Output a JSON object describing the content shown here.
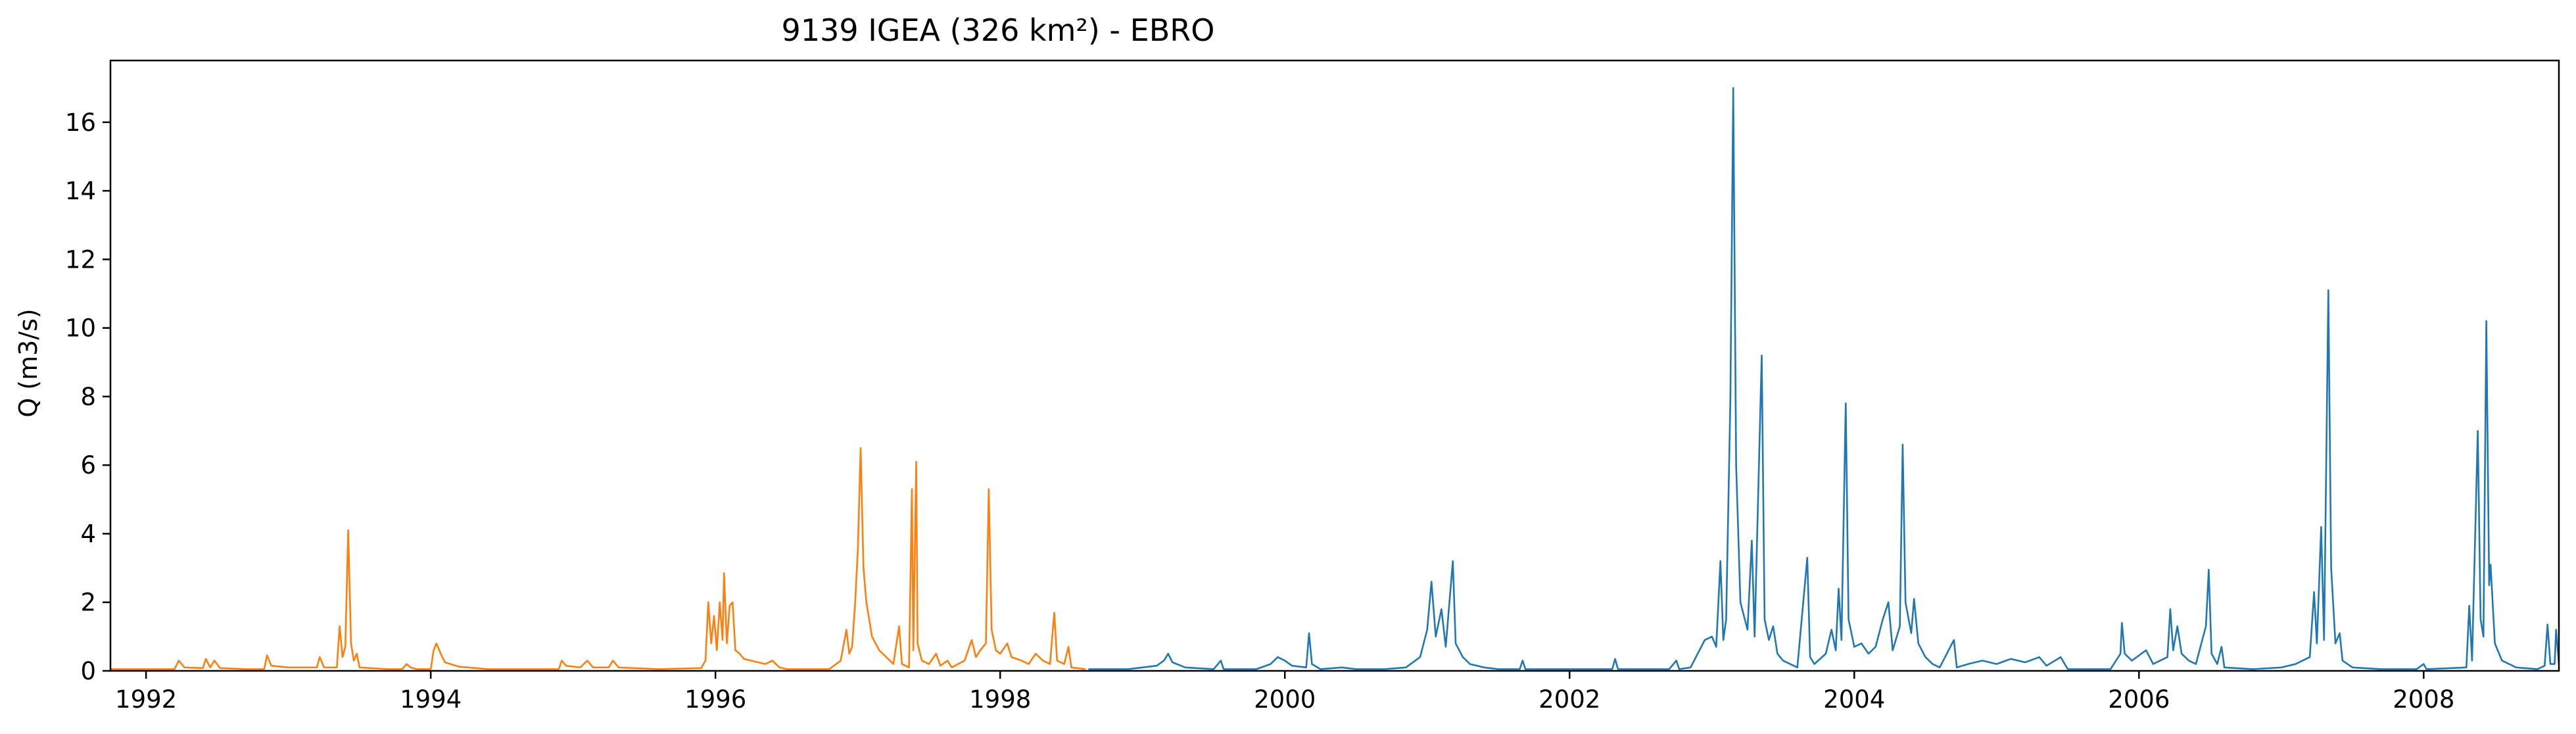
{
  "chart_data": {
    "type": "line",
    "title": "9139 IGEA (326 km²) - EBRO",
    "xlabel": "",
    "ylabel": "Q (m3/s)",
    "x_unit": "year",
    "xlim": [
      1991.75,
      2008.95
    ],
    "ylim": [
      0,
      17.8
    ],
    "xticks": [
      "1992",
      "1994",
      "1996",
      "1998",
      "2000",
      "2002",
      "2004",
      "2006",
      "2008"
    ],
    "yticks": [
      "0",
      "2",
      "4",
      "6",
      "8",
      "10",
      "12",
      "14",
      "16"
    ],
    "grid": false,
    "legend": "none",
    "series": [
      {
        "color": "#ff7f0e",
        "points": [
          [
            1991.75,
            0.05
          ],
          [
            1992.0,
            0.05
          ],
          [
            1992.2,
            0.05
          ],
          [
            1992.23,
            0.3
          ],
          [
            1992.27,
            0.1
          ],
          [
            1992.4,
            0.08
          ],
          [
            1992.42,
            0.35
          ],
          [
            1992.45,
            0.1
          ],
          [
            1992.48,
            0.3
          ],
          [
            1992.52,
            0.08
          ],
          [
            1992.7,
            0.05
          ],
          [
            1992.83,
            0.05
          ],
          [
            1992.85,
            0.45
          ],
          [
            1992.88,
            0.15
          ],
          [
            1993.0,
            0.1
          ],
          [
            1993.2,
            0.1
          ],
          [
            1993.22,
            0.4
          ],
          [
            1993.25,
            0.1
          ],
          [
            1993.34,
            0.1
          ],
          [
            1993.36,
            1.3
          ],
          [
            1993.38,
            0.4
          ],
          [
            1993.4,
            0.7
          ],
          [
            1993.42,
            4.1
          ],
          [
            1993.44,
            0.8
          ],
          [
            1993.46,
            0.3
          ],
          [
            1993.48,
            0.5
          ],
          [
            1993.5,
            0.1
          ],
          [
            1993.7,
            0.05
          ],
          [
            1993.8,
            0.05
          ],
          [
            1993.83,
            0.2
          ],
          [
            1993.86,
            0.1
          ],
          [
            1993.9,
            0.05
          ],
          [
            1994.0,
            0.05
          ],
          [
            1994.02,
            0.6
          ],
          [
            1994.04,
            0.8
          ],
          [
            1994.07,
            0.5
          ],
          [
            1994.1,
            0.25
          ],
          [
            1994.2,
            0.12
          ],
          [
            1994.4,
            0.05
          ],
          [
            1994.7,
            0.05
          ],
          [
            1994.9,
            0.05
          ],
          [
            1994.92,
            0.3
          ],
          [
            1994.95,
            0.15
          ],
          [
            1995.05,
            0.1
          ],
          [
            1995.1,
            0.3
          ],
          [
            1995.14,
            0.1
          ],
          [
            1995.25,
            0.1
          ],
          [
            1995.28,
            0.3
          ],
          [
            1995.32,
            0.1
          ],
          [
            1995.6,
            0.05
          ],
          [
            1995.9,
            0.08
          ],
          [
            1995.93,
            0.3
          ],
          [
            1995.95,
            2.0
          ],
          [
            1995.97,
            0.8
          ],
          [
            1995.99,
            1.6
          ],
          [
            1996.01,
            0.6
          ],
          [
            1996.03,
            2.0
          ],
          [
            1996.05,
            0.9
          ],
          [
            1996.06,
            2.85
          ],
          [
            1996.08,
            0.8
          ],
          [
            1996.1,
            1.9
          ],
          [
            1996.12,
            2.0
          ],
          [
            1996.14,
            0.6
          ],
          [
            1996.17,
            0.5
          ],
          [
            1996.2,
            0.35
          ],
          [
            1996.25,
            0.3
          ],
          [
            1996.3,
            0.25
          ],
          [
            1996.35,
            0.2
          ],
          [
            1996.4,
            0.3
          ],
          [
            1996.45,
            0.1
          ],
          [
            1996.5,
            0.05
          ],
          [
            1996.8,
            0.05
          ],
          [
            1996.88,
            0.3
          ],
          [
            1996.92,
            1.2
          ],
          [
            1996.94,
            0.5
          ],
          [
            1996.96,
            0.7
          ],
          [
            1996.98,
            1.9
          ],
          [
            1997.0,
            3.5
          ],
          [
            1997.02,
            6.5
          ],
          [
            1997.04,
            3.0
          ],
          [
            1997.06,
            2.0
          ],
          [
            1997.1,
            1.0
          ],
          [
            1997.15,
            0.6
          ],
          [
            1997.2,
            0.4
          ],
          [
            1997.25,
            0.2
          ],
          [
            1997.29,
            1.3
          ],
          [
            1997.31,
            0.2
          ],
          [
            1997.36,
            0.1
          ],
          [
            1997.38,
            5.3
          ],
          [
            1997.39,
            0.6
          ],
          [
            1997.41,
            6.1
          ],
          [
            1997.42,
            0.8
          ],
          [
            1997.45,
            0.3
          ],
          [
            1997.5,
            0.2
          ],
          [
            1997.55,
            0.5
          ],
          [
            1997.58,
            0.15
          ],
          [
            1997.63,
            0.3
          ],
          [
            1997.66,
            0.1
          ],
          [
            1997.75,
            0.3
          ],
          [
            1997.8,
            0.9
          ],
          [
            1997.83,
            0.4
          ],
          [
            1997.86,
            0.6
          ],
          [
            1997.9,
            0.8
          ],
          [
            1997.92,
            5.3
          ],
          [
            1997.94,
            1.2
          ],
          [
            1997.97,
            0.6
          ],
          [
            1998.0,
            0.5
          ],
          [
            1998.05,
            0.8
          ],
          [
            1998.08,
            0.4
          ],
          [
            1998.15,
            0.3
          ],
          [
            1998.2,
            0.2
          ],
          [
            1998.25,
            0.5
          ],
          [
            1998.3,
            0.3
          ],
          [
            1998.35,
            0.2
          ],
          [
            1998.38,
            1.7
          ],
          [
            1998.4,
            0.3
          ],
          [
            1998.45,
            0.2
          ],
          [
            1998.48,
            0.7
          ],
          [
            1998.5,
            0.1
          ],
          [
            1998.6,
            0.05
          ]
        ]
      },
      {
        "color": "#1f77b4",
        "points": [
          [
            1998.62,
            0.05
          ],
          [
            1998.9,
            0.05
          ],
          [
            1999.0,
            0.1
          ],
          [
            1999.1,
            0.15
          ],
          [
            1999.15,
            0.3
          ],
          [
            1999.18,
            0.5
          ],
          [
            1999.21,
            0.25
          ],
          [
            1999.3,
            0.1
          ],
          [
            1999.5,
            0.05
          ],
          [
            1999.55,
            0.3
          ],
          [
            1999.57,
            0.05
          ],
          [
            1999.8,
            0.05
          ],
          [
            1999.9,
            0.2
          ],
          [
            1999.95,
            0.4
          ],
          [
            2000.0,
            0.3
          ],
          [
            2000.05,
            0.15
          ],
          [
            2000.15,
            0.1
          ],
          [
            2000.17,
            1.1
          ],
          [
            2000.19,
            0.2
          ],
          [
            2000.25,
            0.05
          ],
          [
            2000.4,
            0.1
          ],
          [
            2000.5,
            0.05
          ],
          [
            2000.7,
            0.05
          ],
          [
            2000.85,
            0.1
          ],
          [
            2000.95,
            0.4
          ],
          [
            2001.0,
            1.2
          ],
          [
            2001.03,
            2.6
          ],
          [
            2001.06,
            1.0
          ],
          [
            2001.1,
            1.8
          ],
          [
            2001.13,
            0.7
          ],
          [
            2001.18,
            3.2
          ],
          [
            2001.2,
            0.8
          ],
          [
            2001.25,
            0.4
          ],
          [
            2001.3,
            0.2
          ],
          [
            2001.4,
            0.1
          ],
          [
            2001.5,
            0.05
          ],
          [
            2001.65,
            0.05
          ],
          [
            2001.67,
            0.3
          ],
          [
            2001.69,
            0.05
          ],
          [
            2002.0,
            0.05
          ],
          [
            2002.3,
            0.05
          ],
          [
            2002.32,
            0.35
          ],
          [
            2002.34,
            0.05
          ],
          [
            2002.7,
            0.05
          ],
          [
            2002.75,
            0.3
          ],
          [
            2002.77,
            0.05
          ],
          [
            2002.85,
            0.1
          ],
          [
            2002.9,
            0.5
          ],
          [
            2002.95,
            0.9
          ],
          [
            2003.0,
            1.0
          ],
          [
            2003.03,
            0.7
          ],
          [
            2003.06,
            3.2
          ],
          [
            2003.08,
            0.9
          ],
          [
            2003.1,
            1.5
          ],
          [
            2003.13,
            8.0
          ],
          [
            2003.15,
            17.0
          ],
          [
            2003.17,
            6.0
          ],
          [
            2003.2,
            2.0
          ],
          [
            2003.25,
            1.2
          ],
          [
            2003.28,
            3.8
          ],
          [
            2003.3,
            1.0
          ],
          [
            2003.35,
            9.2
          ],
          [
            2003.37,
            1.5
          ],
          [
            2003.4,
            0.9
          ],
          [
            2003.43,
            1.3
          ],
          [
            2003.46,
            0.5
          ],
          [
            2003.5,
            0.3
          ],
          [
            2003.6,
            0.1
          ],
          [
            2003.67,
            3.3
          ],
          [
            2003.69,
            0.4
          ],
          [
            2003.72,
            0.2
          ],
          [
            2003.8,
            0.5
          ],
          [
            2003.84,
            1.2
          ],
          [
            2003.87,
            0.6
          ],
          [
            2003.89,
            2.4
          ],
          [
            2003.91,
            0.9
          ],
          [
            2003.94,
            7.8
          ],
          [
            2003.96,
            1.5
          ],
          [
            2004.0,
            0.7
          ],
          [
            2004.05,
            0.8
          ],
          [
            2004.1,
            0.5
          ],
          [
            2004.15,
            0.7
          ],
          [
            2004.2,
            1.5
          ],
          [
            2004.24,
            2.0
          ],
          [
            2004.27,
            0.6
          ],
          [
            2004.32,
            1.3
          ],
          [
            2004.34,
            6.6
          ],
          [
            2004.36,
            2.0
          ],
          [
            2004.4,
            1.1
          ],
          [
            2004.42,
            2.1
          ],
          [
            2004.45,
            0.8
          ],
          [
            2004.5,
            0.4
          ],
          [
            2004.55,
            0.2
          ],
          [
            2004.6,
            0.1
          ],
          [
            2004.7,
            0.9
          ],
          [
            2004.72,
            0.1
          ],
          [
            2004.8,
            0.2
          ],
          [
            2004.9,
            0.3
          ],
          [
            2005.0,
            0.2
          ],
          [
            2005.1,
            0.35
          ],
          [
            2005.2,
            0.25
          ],
          [
            2005.3,
            0.4
          ],
          [
            2005.35,
            0.15
          ],
          [
            2005.45,
            0.4
          ],
          [
            2005.5,
            0.05
          ],
          [
            2005.8,
            0.05
          ],
          [
            2005.87,
            0.5
          ],
          [
            2005.88,
            1.4
          ],
          [
            2005.9,
            0.5
          ],
          [
            2005.95,
            0.3
          ],
          [
            2006.05,
            0.6
          ],
          [
            2006.1,
            0.2
          ],
          [
            2006.2,
            0.4
          ],
          [
            2006.22,
            1.8
          ],
          [
            2006.24,
            0.6
          ],
          [
            2006.27,
            1.3
          ],
          [
            2006.3,
            0.5
          ],
          [
            2006.35,
            0.3
          ],
          [
            2006.4,
            0.2
          ],
          [
            2006.47,
            1.3
          ],
          [
            2006.49,
            2.95
          ],
          [
            2006.51,
            0.5
          ],
          [
            2006.55,
            0.2
          ],
          [
            2006.58,
            0.7
          ],
          [
            2006.6,
            0.1
          ],
          [
            2006.8,
            0.05
          ],
          [
            2007.0,
            0.1
          ],
          [
            2007.1,
            0.2
          ],
          [
            2007.2,
            0.4
          ],
          [
            2007.23,
            2.3
          ],
          [
            2007.25,
            0.8
          ],
          [
            2007.28,
            4.2
          ],
          [
            2007.3,
            0.9
          ],
          [
            2007.32,
            7.6
          ],
          [
            2007.33,
            11.1
          ],
          [
            2007.35,
            3.0
          ],
          [
            2007.38,
            0.8
          ],
          [
            2007.41,
            1.1
          ],
          [
            2007.43,
            0.3
          ],
          [
            2007.5,
            0.1
          ],
          [
            2007.7,
            0.05
          ],
          [
            2007.95,
            0.05
          ],
          [
            2008.0,
            0.2
          ],
          [
            2008.02,
            0.05
          ],
          [
            2008.3,
            0.1
          ],
          [
            2008.32,
            1.9
          ],
          [
            2008.34,
            0.3
          ],
          [
            2008.38,
            7.0
          ],
          [
            2008.4,
            1.5
          ],
          [
            2008.42,
            1.0
          ],
          [
            2008.44,
            10.2
          ],
          [
            2008.46,
            2.5
          ],
          [
            2008.47,
            3.1
          ],
          [
            2008.5,
            0.8
          ],
          [
            2008.55,
            0.3
          ],
          [
            2008.65,
            0.1
          ],
          [
            2008.8,
            0.05
          ],
          [
            2008.85,
            0.15
          ],
          [
            2008.87,
            1.35
          ],
          [
            2008.89,
            0.2
          ],
          [
            2008.92,
            0.2
          ],
          [
            2008.93,
            1.2
          ],
          [
            2008.95,
            0.2
          ]
        ]
      }
    ]
  }
}
